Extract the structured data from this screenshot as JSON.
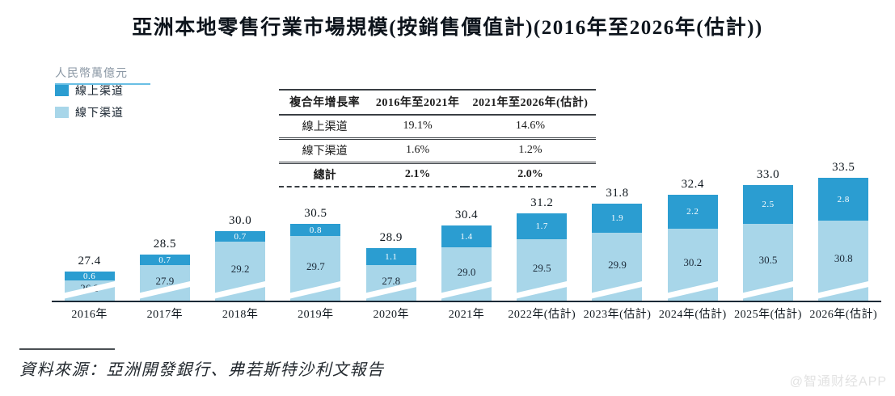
{
  "title": "亞洲本地零售行業市場規模(按銷售價值計)(2016年至2026年(估計))",
  "y_axis_label": "人民幣萬億元",
  "colors": {
    "online": "#2B9DD1",
    "offline": "#A8D6E9",
    "underline": "#69BFE4",
    "axis": "#1A2936"
  },
  "legend": [
    {
      "label": "線上渠道",
      "color": "#2B9DD1"
    },
    {
      "label": "線下渠道",
      "color": "#A8D6E9"
    }
  ],
  "cagr_table": {
    "header": [
      "複合年增長率",
      "2016年至2021年",
      "2021年至2026年(估計)"
    ],
    "rows": [
      {
        "label": "線上渠道",
        "values": [
          "19.1%",
          "14.6%"
        ]
      },
      {
        "label": "線下渠道",
        "values": [
          "1.6%",
          "1.2%"
        ]
      },
      {
        "label": "總計",
        "values": [
          "2.1%",
          "2.0%"
        ]
      }
    ]
  },
  "chart_data": {
    "type": "bar",
    "stacked": true,
    "title": "亞洲本地零售行業市場規模(按銷售價值計)(2016年至2026年(估計))",
    "ylabel": "人民幣萬億元",
    "axis_break": true,
    "baseline_value": 25.5,
    "categories": [
      "2016年",
      "2017年",
      "2018年",
      "2019年",
      "2020年",
      "2021年",
      "2022年(估計)",
      "2023年(估計)",
      "2024年(估計)",
      "2025年(估計)",
      "2026年(估計)"
    ],
    "series": [
      {
        "name": "線上渠道",
        "color": "#2B9DD1",
        "values": [
          0.6,
          0.7,
          0.7,
          0.8,
          1.1,
          1.4,
          1.7,
          1.9,
          2.2,
          2.5,
          2.8
        ]
      },
      {
        "name": "線下渠道",
        "color": "#A8D6E9",
        "values": [
          26.8,
          27.9,
          29.2,
          29.7,
          27.8,
          29.0,
          29.5,
          29.9,
          30.2,
          30.5,
          30.8
        ]
      }
    ],
    "totals": [
      27.4,
      28.5,
      30.0,
      30.5,
      28.9,
      30.4,
      31.2,
      31.8,
      32.4,
      33.0,
      33.5
    ]
  },
  "source_note": "資料來源：亞洲開發銀行、弗若斯特沙利文報告",
  "watermark": "@智通财经APP"
}
